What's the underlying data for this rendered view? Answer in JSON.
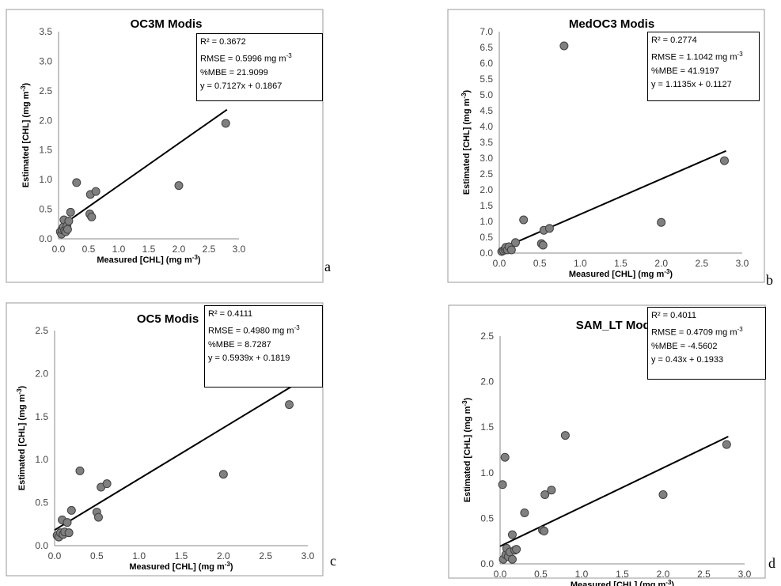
{
  "chart_data": [
    {
      "type": "scatter",
      "title": "OC3M Modis",
      "xlabel": "Measured [CHL] (mg m",
      "ylabel": "Estimated [CHL] (mg m",
      "unit_exp": "-3",
      "label_close": ")",
      "xlim": [
        0,
        3.0
      ],
      "ylim": [
        0,
        3.5
      ],
      "xticks": [
        "0.0",
        "0.5",
        "1.0",
        "1.5",
        "2.0",
        "2.5",
        "3.0"
      ],
      "yticks": [
        "0.0",
        "0.5",
        "1.0",
        "1.5",
        "2.0",
        "2.5",
        "3.0",
        "3.5"
      ],
      "points": [
        [
          0.03,
          0.12
        ],
        [
          0.05,
          0.08
        ],
        [
          0.06,
          0.15
        ],
        [
          0.08,
          0.2
        ],
        [
          0.09,
          0.32
        ],
        [
          0.1,
          0.14
        ],
        [
          0.12,
          0.12
        ],
        [
          0.14,
          0.22
        ],
        [
          0.15,
          0.16
        ],
        [
          0.17,
          0.3
        ],
        [
          0.2,
          0.45
        ],
        [
          0.3,
          0.95
        ],
        [
          0.52,
          0.42
        ],
        [
          0.53,
          0.75
        ],
        [
          0.55,
          0.37
        ],
        [
          0.62,
          0.8
        ],
        [
          2.0,
          0.9
        ],
        [
          2.78,
          1.95
        ]
      ],
      "trendline": {
        "slope": 0.7127,
        "intercept": 0.1867,
        "x_range": [
          0,
          2.8
        ]
      },
      "stats": {
        "r2": "R² =  0.3672",
        "rmse": "RMSE = 0.5996 mg m",
        "rmse_exp": "-3",
        "mbe": "%MBE =  21.9099",
        "eq": "y = 0.7127x + 0.1867"
      },
      "panel_label": "a"
    },
    {
      "type": "scatter",
      "title": "MedOC3 Modis",
      "xlabel": "Measured [CHL] (mg m",
      "ylabel": "Estimated [CHL] (mg m",
      "unit_exp": "-3",
      "label_close": ")",
      "xlim": [
        0,
        3.0
      ],
      "ylim": [
        0,
        7.0
      ],
      "xticks": [
        "0.0",
        "0.5",
        "1.0",
        "1.5",
        "2.0",
        "2.5",
        "3.0"
      ],
      "yticks": [
        "0.0",
        "0.5",
        "1.0",
        "1.5",
        "2.0",
        "2.5",
        "3.0",
        "3.5",
        "4.0",
        "4.5",
        "5.0",
        "5.5",
        "6.0",
        "6.5",
        "7.0"
      ],
      "points": [
        [
          0.03,
          0.05
        ],
        [
          0.05,
          0.08
        ],
        [
          0.07,
          0.12
        ],
        [
          0.08,
          0.18
        ],
        [
          0.1,
          0.1
        ],
        [
          0.12,
          0.2
        ],
        [
          0.15,
          0.1
        ],
        [
          0.2,
          0.33
        ],
        [
          0.3,
          1.05
        ],
        [
          0.52,
          0.3
        ],
        [
          0.54,
          0.25
        ],
        [
          0.55,
          0.72
        ],
        [
          0.62,
          0.78
        ],
        [
          0.8,
          6.55
        ],
        [
          2.0,
          0.97
        ],
        [
          2.78,
          2.92
        ]
      ],
      "trendline": {
        "slope": 1.1135,
        "intercept": 0.1127,
        "x_range": [
          0,
          2.8
        ]
      },
      "stats": {
        "r2": "R² =  0.2774",
        "rmse": "RMSE = 1.1042 mg m",
        "rmse_exp": "-3",
        "mbe": "%MBE =  41.9197",
        "eq": "y = 1.1135x + 0.1127"
      },
      "panel_label": "b"
    },
    {
      "type": "scatter",
      "title": "OC5 Modis",
      "xlabel": "Measured [CHL] (mg m",
      "ylabel": "Estimated [CHL] (mg m",
      "unit_exp": "-3",
      "label_close": ")",
      "xlim": [
        0,
        3.0
      ],
      "ylim": [
        0,
        2.5
      ],
      "xticks": [
        "0.0",
        "0.5",
        "1.0",
        "1.5",
        "2.0",
        "2.5",
        "3.0"
      ],
      "yticks": [
        "0.0",
        "0.5",
        "1.0",
        "1.5",
        "2.0",
        "2.5"
      ],
      "points": [
        [
          0.03,
          0.12
        ],
        [
          0.05,
          0.1
        ],
        [
          0.07,
          0.15
        ],
        [
          0.09,
          0.3
        ],
        [
          0.1,
          0.13
        ],
        [
          0.12,
          0.16
        ],
        [
          0.15,
          0.27
        ],
        [
          0.17,
          0.15
        ],
        [
          0.2,
          0.41
        ],
        [
          0.3,
          0.87
        ],
        [
          0.5,
          0.39
        ],
        [
          0.52,
          0.33
        ],
        [
          0.55,
          0.68
        ],
        [
          0.62,
          0.72
        ],
        [
          2.0,
          0.83
        ],
        [
          2.78,
          1.64
        ]
      ],
      "trendline": {
        "slope": 0.5939,
        "intercept": 0.1819,
        "x_range": [
          0,
          2.8
        ]
      },
      "stats": {
        "r2": "R² =  0.4111",
        "rmse": "RMSE = 0.4980 mg m",
        "rmse_exp": "-3",
        "mbe": "%MBE =  8.7287",
        "eq": "y = 0.5939x + 0.1819"
      },
      "panel_label": "c"
    },
    {
      "type": "scatter",
      "title": "SAM_LT Modis",
      "xlabel": "Measured [CHL] (mg m",
      "ylabel": "Estimated [CHL] (mg m",
      "unit_exp": "-3",
      "label_close": ")",
      "xlim": [
        0,
        3.0
      ],
      "ylim": [
        0,
        2.5
      ],
      "xticks": [
        "0.0",
        "0.5",
        "1.0",
        "1.5",
        "2.0",
        "2.5",
        "3.0"
      ],
      "yticks": [
        "0.0",
        "0.5",
        "1.0",
        "1.5",
        "2.0",
        "2.5"
      ],
      "points": [
        [
          0.03,
          0.87
        ],
        [
          0.04,
          0.05
        ],
        [
          0.06,
          1.17
        ],
        [
          0.07,
          0.1
        ],
        [
          0.08,
          0.17
        ],
        [
          0.1,
          0.08
        ],
        [
          0.12,
          0.13
        ],
        [
          0.15,
          0.32
        ],
        [
          0.15,
          0.05
        ],
        [
          0.18,
          0.15
        ],
        [
          0.2,
          0.16
        ],
        [
          0.3,
          0.56
        ],
        [
          0.52,
          0.37
        ],
        [
          0.54,
          0.36
        ],
        [
          0.55,
          0.76
        ],
        [
          0.63,
          0.81
        ],
        [
          0.8,
          1.41
        ],
        [
          2.0,
          0.76
        ],
        [
          2.78,
          1.31
        ]
      ],
      "trendline": {
        "slope": 0.43,
        "intercept": 0.1933,
        "x_range": [
          0,
          2.8
        ]
      },
      "stats": {
        "r2": "R² =  0.4011",
        "rmse": "RMSE = 0.4709 mg m",
        "rmse_exp": "-3",
        "mbe": "%MBE =  -4.5602",
        "eq": "y = 0.43x + 0.1933"
      },
      "panel_label": "d"
    }
  ]
}
